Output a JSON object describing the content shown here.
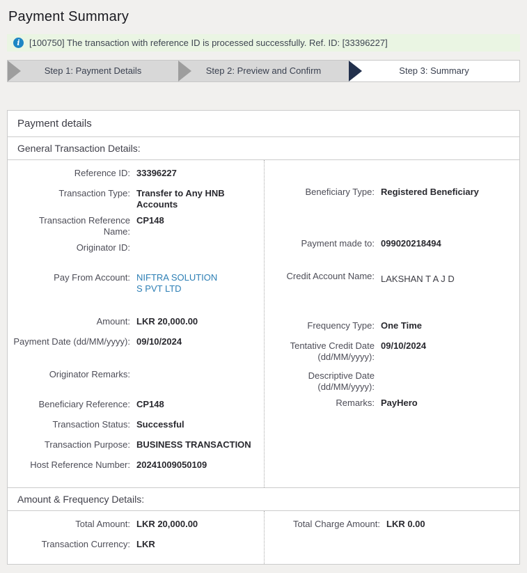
{
  "page": {
    "title": "Payment Summary"
  },
  "alert": {
    "icon_glyph": "i",
    "text": "[100750] The transaction with reference ID is processed successfully. Ref. ID: [33396227]"
  },
  "steps": [
    {
      "label": "Step 1: Payment Details",
      "state": "done"
    },
    {
      "label": "Step 2: Preview and Confirm",
      "state": "done"
    },
    {
      "label": "Step 3: Summary",
      "state": "current"
    }
  ],
  "panel": {
    "title": "Payment details",
    "general": {
      "heading": "General Transaction Details:",
      "left": [
        {
          "label": "Reference ID:",
          "value": "33396227"
        },
        {
          "label": "Transaction Type:",
          "value": "Transfer to Any HNB Accounts"
        },
        {
          "label": "Transaction Reference Name:",
          "value": "CP148"
        },
        {
          "label": "Originator ID:",
          "value": ""
        },
        {
          "label": "Pay From Account:",
          "value_line1": "NIFTRA SOLUTION",
          "value_line2": "S PVT LTD"
        },
        {
          "label": "Amount:",
          "value": "LKR 20,000.00"
        },
        {
          "label": "Payment Date (dd/MM/yyyy):",
          "value": "09/10/2024"
        },
        {
          "label": "Originator Remarks:",
          "value": ""
        },
        {
          "label": "Beneficiary Reference:",
          "value": "CP148"
        },
        {
          "label": "Transaction Status:",
          "value": "Successful"
        },
        {
          "label": "Transaction Purpose:",
          "value": "BUSINESS TRANSACTION"
        },
        {
          "label": "Host Reference Number:",
          "value": "20241009050109"
        }
      ],
      "right": [
        {
          "label": "Beneficiary Type:",
          "value": "Registered Beneficiary"
        },
        {
          "label": "Payment made to:",
          "value": "099020218494"
        },
        {
          "label": "Credit Account Name:",
          "value": "LAKSHAN T A J D"
        },
        {
          "label": "Frequency Type:",
          "value": "One Time"
        },
        {
          "label": "Tentative Credit Date (dd/MM/yyyy):",
          "value": "09/10/2024"
        },
        {
          "label": "Descriptive Date (dd/MM/yyyy):",
          "value": ""
        },
        {
          "label": "Remarks:",
          "value": "PayHero"
        }
      ]
    },
    "amount": {
      "heading": "Amount & Frequency Details:",
      "left": [
        {
          "label": "Total Amount:",
          "value": "LKR 20,000.00"
        },
        {
          "label": "Transaction Currency:",
          "value": "LKR"
        }
      ],
      "right": [
        {
          "label": "Total Charge Amount:",
          "value": "LKR 0.00"
        }
      ]
    }
  },
  "colors": {
    "link_blue": "#2d7fb5",
    "info_icon_blue": "#1d86c4",
    "alert_bg_green": "#eaf5e3",
    "step_active_navy": "#22304c",
    "step_inactive_gray": "#d8d8d8"
  }
}
